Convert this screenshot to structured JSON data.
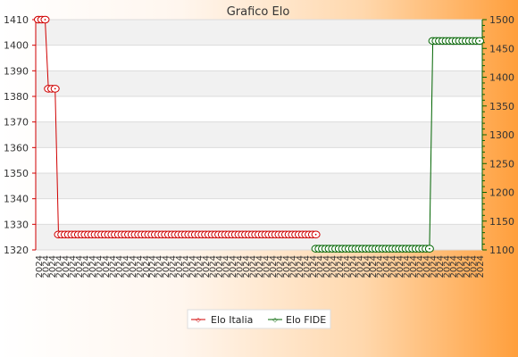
{
  "chart_data": {
    "type": "line",
    "title": "Grafico Elo",
    "left_axis": {
      "min": 1320,
      "max": 1410,
      "ticks": [
        1320,
        1330,
        1340,
        1350,
        1360,
        1370,
        1380,
        1390,
        1400,
        1410
      ]
    },
    "right_axis": {
      "min": 1100,
      "max": 1500,
      "ticks": [
        1100,
        1150,
        1200,
        1250,
        1300,
        1350,
        1400,
        1450,
        1500
      ]
    },
    "grid": true,
    "legend_position": "bottom",
    "series": [
      {
        "name": "Elo Italia",
        "axis": "left",
        "color": "#d00000",
        "segments": [
          {
            "from": 0,
            "to": 2,
            "value": 1410
          },
          {
            "from": 3,
            "to": 5,
            "value": 1383
          },
          {
            "from": 6,
            "to": 83,
            "value": 1326
          }
        ]
      },
      {
        "name": "Elo FIDE",
        "axis": "right",
        "color": "#006400",
        "segments": [
          {
            "from": 83,
            "to": 117,
            "value": 1102
          },
          {
            "from": 118,
            "to": 132,
            "value": 1463
          }
        ]
      }
    ],
    "x_count": 133,
    "x_label_text": "2024"
  },
  "colors": {
    "background_gradient_start": "#ffffff",
    "background_gradient_end": "#ff9f3c",
    "left_axis": "#d00000",
    "right_axis": "#006400"
  }
}
